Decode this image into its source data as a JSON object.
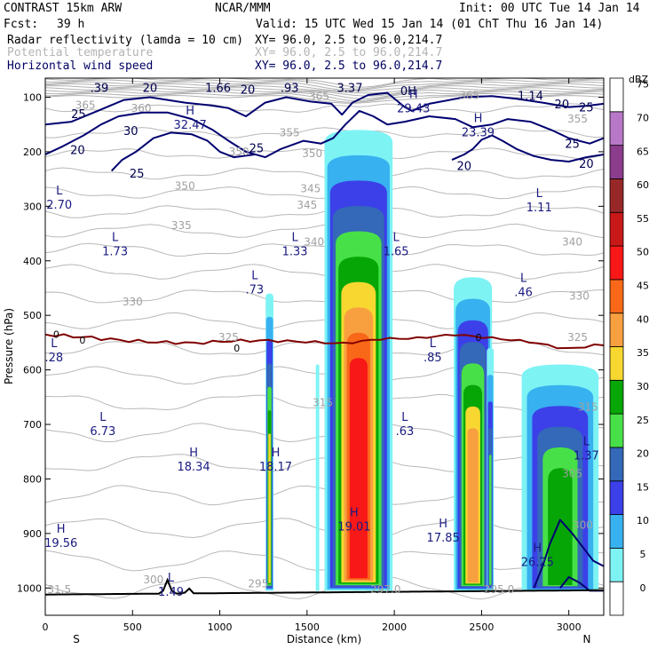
{
  "header": {
    "model": "CONTRAST 15km ARW",
    "org": "NCAR/MMM",
    "init": "Init: 00 UTC Tue 14 Jan 14",
    "fcst_label": "Fcst:",
    "fcst_value": "39 h",
    "valid": "Valid: 15 UTC Wed 15 Jan 14 (01 ChT Thu 16 Jan 14)",
    "fields": [
      {
        "name": "Radar reflectivity (lamda = 10 cm)",
        "xy": "XY=  96.0,  2.5 to  96.0,214.7",
        "color": "#000000"
      },
      {
        "name": "Potential temperature",
        "xy": "XY=  96.0,  2.5 to  96.0,214.7",
        "color": "#b4b4b4"
      },
      {
        "name": "Horizontal wind speed",
        "xy": "XY=  96.0,  2.5 to  96.0,214.7",
        "color": "#000060"
      }
    ]
  },
  "chart_data": {
    "type": "cross-section",
    "title": "Radar reflectivity, potential temperature, horizontal wind speed",
    "xlabel": "Distance (km)",
    "ylabel": "Pressure (hPa)",
    "xlim": [
      0,
      3200
    ],
    "ylim": [
      1050,
      65
    ],
    "x_ticks": [
      0,
      500,
      1000,
      1500,
      2000,
      2500,
      3000
    ],
    "y_ticks": [
      100,
      200,
      300,
      400,
      500,
      600,
      700,
      800,
      900,
      1000
    ],
    "x_end_labels": {
      "left": "S",
      "right": "N"
    },
    "colorbar": {
      "unit": "dBZ",
      "levels": [
        0,
        5,
        10,
        15,
        20,
        25,
        30,
        35,
        40,
        45,
        50,
        55,
        60,
        65,
        70,
        75
      ],
      "colors": [
        "#ffffff",
        "#7ef3f4",
        "#38b1f0",
        "#3c40e8",
        "#3468b8",
        "#48e048",
        "#06a606",
        "#f8d830",
        "#f8a040",
        "#f86818",
        "#f81818",
        "#c81818",
        "#982828",
        "#8c3c8c",
        "#b878c8",
        "#ffffff"
      ]
    },
    "echoes": [
      {
        "x": 1285,
        "x0": 1265,
        "x1": 1310,
        "top": 460,
        "bottom": 1005,
        "max_dbz": 35
      },
      {
        "x": 1560,
        "x0": 1550,
        "x1": 1570,
        "top": 590,
        "bottom": 1005,
        "max_dbz": 5
      },
      {
        "x": 1795,
        "x0": 1660,
        "x1": 2050,
        "top": 160,
        "bottom": 1005,
        "max_dbz": 50
      },
      {
        "x": 2450,
        "x0": 2350,
        "x1": 2570,
        "top": 430,
        "bottom": 1005,
        "max_dbz": 40
      },
      {
        "x": 2550,
        "x0": 2530,
        "x1": 2570,
        "top": 560,
        "bottom": 1005,
        "max_dbz": 25
      },
      {
        "x": 2950,
        "x0": 2760,
        "x1": 3200,
        "top": 590,
        "bottom": 1005,
        "max_dbz": 30
      }
    ],
    "theta_labels": [
      {
        "x": 1400,
        "p": 165,
        "text": "355"
      },
      {
        "x": 1530,
        "p": 203,
        "text": "350"
      },
      {
        "x": 1500,
        "p": 298,
        "text": "345"
      },
      {
        "x": 1520,
        "p": 268,
        "text": "345"
      },
      {
        "x": 1540,
        "p": 365,
        "text": "340"
      },
      {
        "x": 780,
        "p": 335,
        "text": "335"
      },
      {
        "x": 500,
        "p": 475,
        "text": "330"
      },
      {
        "x": 1050,
        "p": 540,
        "text": "325"
      },
      {
        "x": 1590,
        "p": 660,
        "text": "315"
      },
      {
        "x": 3060,
        "p": 465,
        "text": "330"
      },
      {
        "x": 3020,
        "p": 365,
        "text": "340"
      },
      {
        "x": 3050,
        "p": 540,
        "text": "325"
      },
      {
        "x": 3110,
        "p": 668,
        "text": "315"
      },
      {
        "x": 3020,
        "p": 790,
        "text": "305"
      },
      {
        "x": 3080,
        "p": 885,
        "text": "300"
      },
      {
        "x": 80,
        "p": 1003,
        "text": "31.5"
      },
      {
        "x": 1220,
        "p": 992,
        "text": "295"
      },
      {
        "x": 1950,
        "p": 1003,
        "text": "297.0"
      },
      {
        "x": 2600,
        "p": 1003,
        "text": "295.0"
      },
      {
        "x": 620,
        "p": 985,
        "text": "300"
      },
      {
        "x": 230,
        "p": 115,
        "text": "365"
      },
      {
        "x": 550,
        "p": 120,
        "text": "360"
      },
      {
        "x": 1570,
        "p": 98,
        "text": "365"
      },
      {
        "x": 2430,
        "p": 97,
        "text": "365"
      },
      {
        "x": 3050,
        "p": 140,
        "text": "355"
      },
      {
        "x": 1110,
        "p": 200,
        "text": "350"
      },
      {
        "x": 800,
        "p": 263,
        "text": "350"
      }
    ],
    "isotherm_0C": {
      "label": "0",
      "pressures": [
        535,
        540,
        545,
        550,
        550,
        548,
        545,
        550,
        550,
        545,
        540,
        537,
        540,
        550,
        560,
        555
      ]
    },
    "wind_contours": [
      20,
      25,
      30
    ],
    "wind_labels": [
      {
        "x": 310,
        "p": 82,
        "text": ".39"
      },
      {
        "x": 600,
        "p": 82,
        "text": "20"
      },
      {
        "x": 990,
        "p": 82,
        "text": "1.66"
      },
      {
        "x": 1160,
        "p": 85,
        "text": "20"
      },
      {
        "x": 1400,
        "p": 82,
        "text": ".93"
      },
      {
        "x": 1745,
        "p": 82,
        "text": "3.37"
      },
      {
        "x": 2080,
        "p": 88,
        "text": "0H"
      },
      {
        "x": 2780,
        "p": 97,
        "text": "1.14"
      },
      {
        "x": 2960,
        "p": 112,
        "text": "20"
      },
      {
        "x": 3100,
        "p": 118,
        "text": "25"
      },
      {
        "x": 190,
        "p": 130,
        "text": "25"
      },
      {
        "x": 490,
        "p": 161,
        "text": "30"
      },
      {
        "x": 185,
        "p": 196,
        "text": "20"
      },
      {
        "x": 525,
        "p": 239,
        "text": "25"
      },
      {
        "x": 1210,
        "p": 193,
        "text": "25"
      },
      {
        "x": 3020,
        "p": 185,
        "text": "25"
      },
      {
        "x": 2400,
        "p": 225,
        "text": "20"
      },
      {
        "x": 3100,
        "p": 221,
        "text": "20"
      }
    ],
    "extrema": [
      {
        "type": "H",
        "x": 830,
        "p": 138,
        "value": "32.47"
      },
      {
        "type": "H",
        "x": 2110,
        "p": 108,
        "value": "29.43"
      },
      {
        "type": "H",
        "x": 2480,
        "p": 152,
        "value": "23.39"
      },
      {
        "type": "L",
        "x": 80,
        "p": 285,
        "value": "2.70"
      },
      {
        "type": "L",
        "x": 2830,
        "p": 290,
        "value": "1.11"
      },
      {
        "type": "L",
        "x": 400,
        "p": 370,
        "value": "1.73"
      },
      {
        "type": "L",
        "x": 1430,
        "p": 370,
        "value": "1.33"
      },
      {
        "type": "L",
        "x": 2010,
        "p": 370,
        "value": "1.65"
      },
      {
        "type": "L",
        "x": 1200,
        "p": 440,
        "value": ".73"
      },
      {
        "type": "L",
        "x": 2740,
        "p": 445,
        "value": ".46"
      },
      {
        "type": "L",
        "x": 50,
        "p": 565,
        "value": ".28"
      },
      {
        "type": "L",
        "x": 2220,
        "p": 565,
        "value": ".85"
      },
      {
        "type": "L",
        "x": 330,
        "p": 700,
        "value": "6.73"
      },
      {
        "type": "L",
        "x": 2060,
        "p": 700,
        "value": ".63"
      },
      {
        "type": "L",
        "x": 3100,
        "p": 745,
        "value": "1.37"
      },
      {
        "type": "H",
        "x": 850,
        "p": 765,
        "value": "18.34"
      },
      {
        "type": "H",
        "x": 1320,
        "p": 765,
        "value": "18.17"
      },
      {
        "type": "H",
        "x": 1770,
        "p": 875,
        "value": "19.01"
      },
      {
        "type": "H",
        "x": 2280,
        "p": 895,
        "value": "17.85"
      },
      {
        "type": "H",
        "x": 90,
        "p": 905,
        "value": "19.56"
      },
      {
        "type": "H",
        "x": 2820,
        "p": 940,
        "value": "26.25"
      },
      {
        "type": "L",
        "x": 720,
        "p": 995,
        "value": "1.49"
      }
    ]
  }
}
